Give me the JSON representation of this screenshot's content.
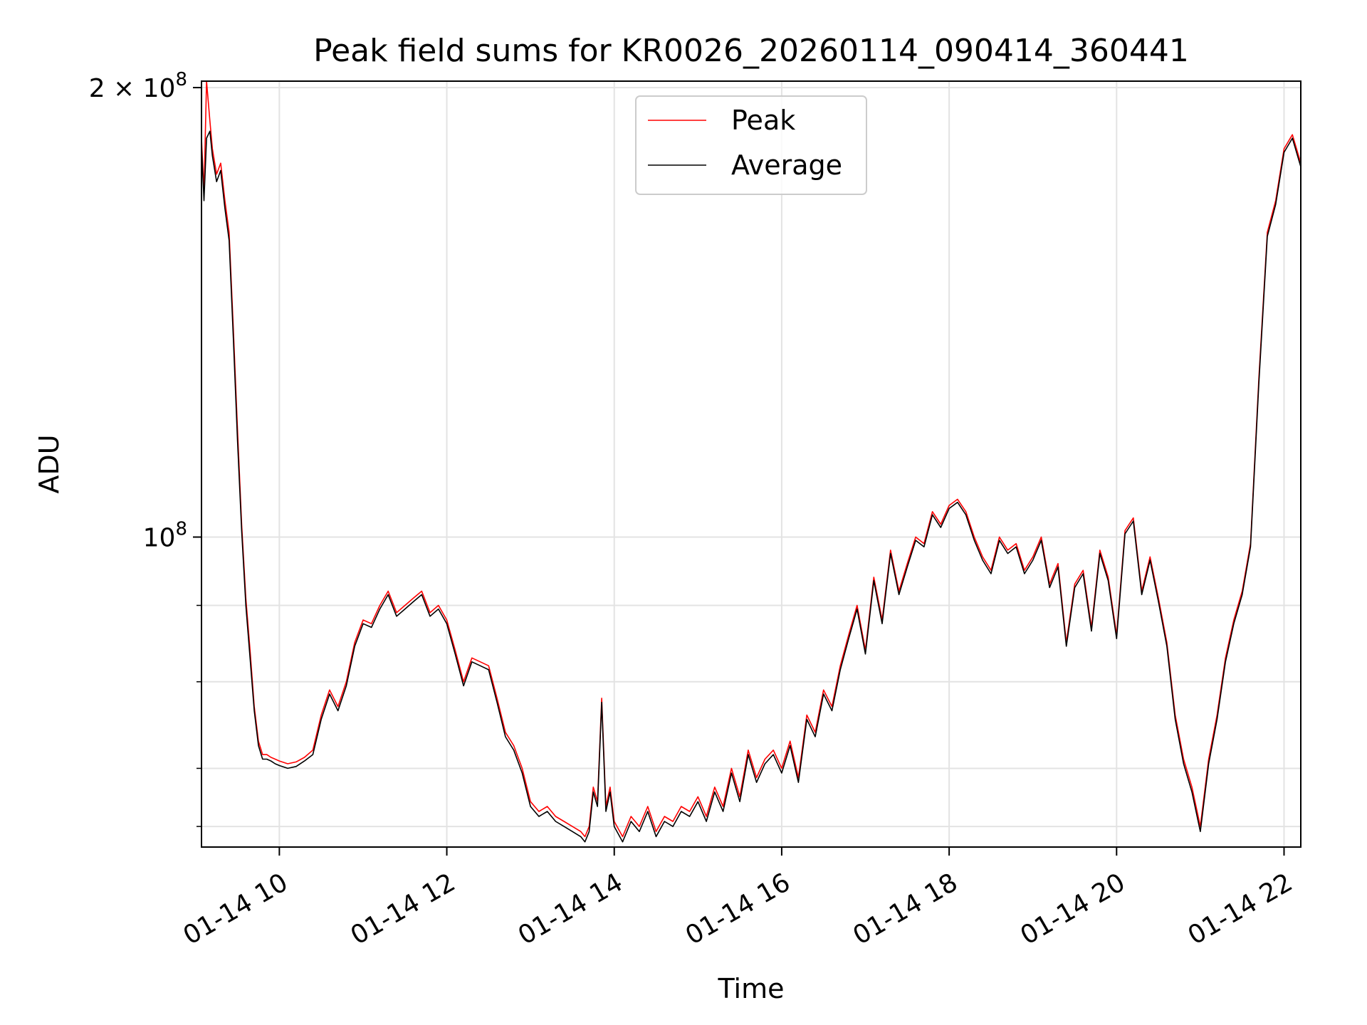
{
  "chart_data": {
    "type": "line",
    "title": "Peak field sums for KR0026_20260114_090414_360441",
    "xlabel": "Time",
    "ylabel": "ADU",
    "yscale": "log",
    "xlim": [
      9.07,
      22.2
    ],
    "ylim": [
      62000000,
      202000000
    ],
    "xticks": [
      {
        "value": 10,
        "label": "01-14 10"
      },
      {
        "value": 12,
        "label": "01-14 12"
      },
      {
        "value": 14,
        "label": "01-14 14"
      },
      {
        "value": 16,
        "label": "01-14 16"
      },
      {
        "value": 18,
        "label": "01-14 18"
      },
      {
        "value": 20,
        "label": "01-14 20"
      },
      {
        "value": 22,
        "label": "01-14 22"
      }
    ],
    "yticks_major": [
      {
        "value": 100000000,
        "base": "10",
        "exp": "8"
      },
      {
        "value": 200000000,
        "base": "2 × 10",
        "exp": "8"
      }
    ],
    "yticks_minor": [
      64000000,
      70000000,
      80000000,
      90000000
    ],
    "grid": true,
    "legend_position": "upper-center",
    "legend": [
      {
        "label": "Peak",
        "color": "#ff0000"
      },
      {
        "label": "Average",
        "color": "#000000"
      }
    ],
    "x": [
      9.07,
      9.1,
      9.13,
      9.17,
      9.2,
      9.25,
      9.3,
      9.35,
      9.4,
      9.45,
      9.5,
      9.55,
      9.6,
      9.65,
      9.7,
      9.75,
      9.8,
      9.85,
      9.9,
      9.95,
      10.0,
      10.1,
      10.2,
      10.3,
      10.4,
      10.5,
      10.6,
      10.7,
      10.8,
      10.9,
      11.0,
      11.1,
      11.2,
      11.3,
      11.4,
      11.5,
      11.6,
      11.7,
      11.8,
      11.9,
      12.0,
      12.1,
      12.2,
      12.3,
      12.4,
      12.5,
      12.6,
      12.7,
      12.8,
      12.9,
      13.0,
      13.1,
      13.2,
      13.3,
      13.4,
      13.5,
      13.6,
      13.65,
      13.7,
      13.75,
      13.8,
      13.85,
      13.9,
      13.95,
      14.0,
      14.1,
      14.2,
      14.3,
      14.4,
      14.5,
      14.6,
      14.7,
      14.8,
      14.9,
      15.0,
      15.1,
      15.2,
      15.3,
      15.4,
      15.5,
      15.6,
      15.7,
      15.8,
      15.9,
      16.0,
      16.1,
      16.2,
      16.3,
      16.4,
      16.5,
      16.6,
      16.7,
      16.8,
      16.9,
      17.0,
      17.1,
      17.2,
      17.3,
      17.4,
      17.5,
      17.6,
      17.7,
      17.8,
      17.9,
      18.0,
      18.1,
      18.2,
      18.3,
      18.4,
      18.5,
      18.6,
      18.7,
      18.8,
      18.9,
      19.0,
      19.1,
      19.2,
      19.3,
      19.4,
      19.5,
      19.6,
      19.7,
      19.8,
      19.9,
      20.0,
      20.1,
      20.2,
      20.3,
      20.4,
      20.5,
      20.6,
      20.7,
      20.8,
      20.9,
      21.0,
      21.1,
      21.2,
      21.3,
      21.4,
      21.5,
      21.6,
      21.7,
      21.8,
      21.9,
      22.0,
      22.1,
      22.2
    ],
    "series": [
      {
        "name": "Peak",
        "color": "#ff0000",
        "values": [
          185000000,
          170000000,
          202000000,
          190000000,
          182000000,
          175000000,
          178000000,
          168000000,
          160000000,
          138000000,
          118000000,
          102000000,
          91000000,
          84000000,
          77000000,
          73000000,
          71500000,
          71500000,
          71200000,
          71000000,
          70800000,
          70500000,
          70700000,
          71200000,
          72000000,
          76000000,
          79000000,
          77000000,
          80000000,
          85000000,
          88000000,
          87500000,
          90000000,
          92000000,
          89000000,
          90000000,
          91000000,
          92000000,
          89000000,
          90000000,
          88000000,
          84000000,
          80000000,
          83000000,
          82500000,
          82000000,
          78000000,
          74000000,
          72500000,
          70000000,
          66500000,
          65500000,
          66000000,
          65000000,
          64500000,
          64000000,
          63500000,
          63000000,
          64000000,
          68000000,
          66500000,
          78000000,
          66000000,
          68000000,
          64500000,
          63000000,
          65000000,
          64000000,
          66000000,
          63500000,
          65000000,
          64500000,
          66000000,
          65500000,
          67000000,
          65000000,
          68000000,
          66000000,
          70000000,
          67000000,
          72000000,
          69000000,
          71000000,
          72000000,
          70000000,
          73000000,
          69000000,
          76000000,
          74000000,
          79000000,
          77000000,
          82000000,
          86000000,
          90000000,
          84000000,
          94000000,
          88000000,
          98000000,
          92000000,
          96000000,
          100000000,
          99000000,
          104000000,
          102000000,
          105000000,
          106000000,
          104000000,
          100000000,
          97000000,
          95000000,
          100000000,
          98000000,
          99000000,
          95000000,
          97000000,
          100000000,
          93000000,
          96000000,
          85000000,
          93000000,
          95000000,
          87000000,
          98000000,
          94000000,
          86000000,
          101000000,
          103000000,
          92000000,
          97000000,
          91000000,
          85000000,
          76000000,
          71000000,
          68000000,
          64000000,
          71000000,
          76000000,
          83000000,
          88000000,
          92000000,
          99000000,
          128000000,
          160000000,
          168000000,
          182000000,
          186000000,
          178000000
        ]
      },
      {
        "name": "Average",
        "color": "#000000",
        "values": [
          183000000,
          168000000,
          185000000,
          187000000,
          180000000,
          173000000,
          176000000,
          166000000,
          158000000,
          136000000,
          116000000,
          101000000,
          90000000,
          83000000,
          76500000,
          72500000,
          71000000,
          71000000,
          70800000,
          70500000,
          70300000,
          70000000,
          70200000,
          70800000,
          71500000,
          75500000,
          78500000,
          76500000,
          79500000,
          84500000,
          87500000,
          87000000,
          89500000,
          91500000,
          88500000,
          89500000,
          90500000,
          91500000,
          88500000,
          89500000,
          87500000,
          83500000,
          79500000,
          82500000,
          82000000,
          81500000,
          77500000,
          73500000,
          72000000,
          69500000,
          66000000,
          65000000,
          65500000,
          64500000,
          64000000,
          63500000,
          63000000,
          62500000,
          63500000,
          67500000,
          66000000,
          77500000,
          65500000,
          67500000,
          64000000,
          62500000,
          64500000,
          63500000,
          65500000,
          63000000,
          64500000,
          64000000,
          65500000,
          65000000,
          66500000,
          64500000,
          67500000,
          65500000,
          69500000,
          66500000,
          71500000,
          68500000,
          70500000,
          71500000,
          69500000,
          72500000,
          68500000,
          75500000,
          73500000,
          78500000,
          76500000,
          81500000,
          85500000,
          89500000,
          83500000,
          93500000,
          87500000,
          97500000,
          91500000,
          95500000,
          99500000,
          98500000,
          103500000,
          101500000,
          104500000,
          105500000,
          103500000,
          99500000,
          96500000,
          94500000,
          99500000,
          97500000,
          98500000,
          94500000,
          96500000,
          99500000,
          92500000,
          95500000,
          84500000,
          92500000,
          94500000,
          86500000,
          97500000,
          93500000,
          85500000,
          100500000,
          102500000,
          91500000,
          96500000,
          90500000,
          84500000,
          75500000,
          70500000,
          67500000,
          63500000,
          70500000,
          75500000,
          82500000,
          87500000,
          91500000,
          98500000,
          127000000,
          159000000,
          167000000,
          181000000,
          185000000,
          177000000
        ]
      }
    ]
  }
}
